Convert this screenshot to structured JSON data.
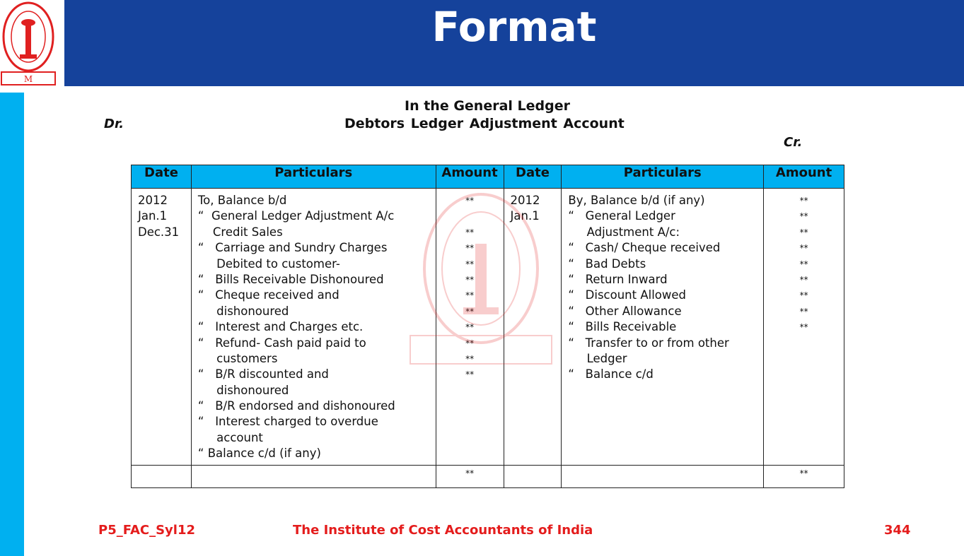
{
  "header": {
    "title": "Format",
    "logo_text": "THE INSTITUTE OF COST ACCOUNTANTS OF INDIA"
  },
  "heading": {
    "line1": "In the General Ledger",
    "line2": "Debtors Ledger Adjustment Account",
    "dr": "Dr.",
    "cr": "Cr."
  },
  "table": {
    "columns": [
      "Date",
      "Particulars",
      "Amount",
      "Date",
      "Particulars",
      "Amount"
    ],
    "left": {
      "dates": [
        "2012",
        "Jan.1",
        "Dec.31"
      ],
      "particulars": [
        "To, Balance b/d",
        "“  General Ledger Adjustment A/c",
        "    Credit Sales",
        "“   Carriage and Sundry Charges",
        "     Debited to customer-",
        "“   Bills Receivable Dishonoured",
        "“   Cheque received and",
        "     dishonoured",
        "“   Interest and Charges etc.",
        "“   Refund- Cash paid paid to",
        "     customers",
        "“   B/R discounted and",
        "     dishonoured",
        "“   B/R endorsed and dishonoured",
        "“   Interest charged to overdue",
        "     account",
        "“ Balance c/d (if any)"
      ],
      "amounts": [
        "**",
        "",
        "**",
        "**",
        "**",
        "**",
        "**",
        "**",
        "**",
        "**",
        "**",
        "**"
      ],
      "total": "**"
    },
    "right": {
      "dates": [
        "2012",
        "Jan.1"
      ],
      "particulars": [
        "By, Balance b/d (if any)",
        "“   General Ledger",
        "     Adjustment A/c:",
        "“   Cash/ Cheque received",
        "“   Bad Debts",
        "“   Return Inward",
        "“   Discount Allowed",
        "“   Other Allowance",
        "“   Bills Receivable",
        "“   Transfer to or from other",
        "     Ledger",
        "“   Balance c/d"
      ],
      "amounts": [
        "**",
        "**",
        "**",
        "**",
        "**",
        "**",
        "**",
        "**",
        "**"
      ],
      "total": "**"
    }
  },
  "footer": {
    "code": "P5_FAC_Syl12",
    "institute": "The Institute of Cost Accountants of India",
    "page": "344"
  },
  "colors": {
    "banner": "#15429b",
    "sidebar": "#00b0f0",
    "header_row": "#00b0f0",
    "footer_text": "#e41c1c",
    "logo": "#e02020"
  }
}
